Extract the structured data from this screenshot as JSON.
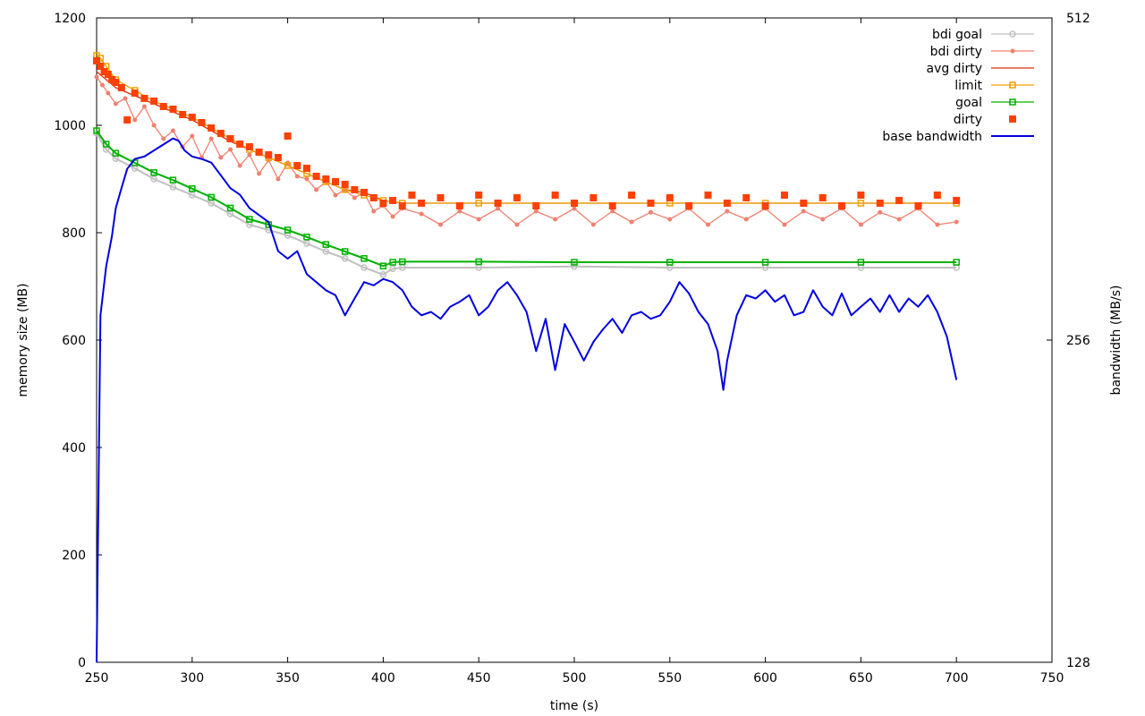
{
  "chart_data": {
    "type": "line",
    "title": "",
    "xlabel": "time (s)",
    "ylabel": "memory size (MB)",
    "y2label": "bandwidth (MB/s)",
    "xlim": [
      250,
      750
    ],
    "ylim": [
      0,
      1200
    ],
    "y2lim": [
      128,
      512
    ],
    "xticks": [
      250,
      300,
      350,
      400,
      450,
      500,
      550,
      600,
      650,
      700,
      750
    ],
    "yticks": [
      0,
      200,
      400,
      600,
      800,
      1000,
      1200
    ],
    "y2ticks": [
      128,
      256,
      512
    ],
    "grid": false,
    "legend_position": "top-right",
    "series": [
      {
        "name": "bdi goal",
        "axis": "y",
        "color": "#c0c0c0",
        "marker": "circle-open",
        "line": true,
        "x": [
          250,
          255,
          260,
          270,
          280,
          290,
          300,
          310,
          320,
          330,
          340,
          350,
          360,
          370,
          380,
          390,
          400,
          405,
          410,
          450,
          500,
          550,
          600,
          650,
          700
        ],
        "y": [
          985,
          955,
          938,
          920,
          900,
          885,
          870,
          855,
          835,
          815,
          805,
          795,
          780,
          765,
          752,
          735,
          722,
          733,
          735,
          735,
          737,
          735,
          735,
          735,
          735
        ]
      },
      {
        "name": "bdi dirty",
        "axis": "y",
        "color": "#f08070",
        "marker": "dot",
        "line": true,
        "x": [
          250,
          253,
          256,
          260,
          265,
          270,
          275,
          280,
          285,
          290,
          295,
          300,
          305,
          310,
          315,
          320,
          325,
          330,
          335,
          340,
          345,
          350,
          355,
          360,
          365,
          370,
          375,
          380,
          385,
          390,
          395,
          400,
          405,
          410,
          420,
          430,
          440,
          450,
          460,
          470,
          480,
          490,
          500,
          510,
          520,
          530,
          540,
          550,
          560,
          570,
          580,
          590,
          600,
          610,
          620,
          630,
          640,
          650,
          660,
          670,
          680,
          690,
          700
        ],
        "y": [
          1090,
          1075,
          1060,
          1040,
          1050,
          1010,
          1035,
          1000,
          975,
          990,
          960,
          980,
          940,
          975,
          940,
          955,
          925,
          945,
          910,
          935,
          900,
          930,
          905,
          900,
          880,
          895,
          870,
          880,
          865,
          875,
          840,
          850,
          830,
          845,
          835,
          815,
          840,
          825,
          845,
          815,
          840,
          825,
          845,
          815,
          840,
          820,
          838,
          825,
          845,
          815,
          840,
          825,
          845,
          815,
          840,
          825,
          845,
          815,
          838,
          825,
          845,
          815,
          820
        ]
      },
      {
        "name": "avg dirty",
        "axis": "y",
        "color": "#e03010",
        "marker": "none",
        "line": true,
        "x": [
          250,
          260,
          270,
          280,
          290,
          300,
          310,
          320,
          330,
          340,
          350,
          360,
          370,
          380,
          390,
          400,
          410,
          420,
          450,
          500,
          550,
          600,
          650,
          700
        ],
        "y": [
          1100,
          1070,
          1055,
          1040,
          1025,
          1010,
          990,
          970,
          955,
          940,
          925,
          910,
          895,
          880,
          875,
          860,
          855,
          855,
          855,
          855,
          855,
          855,
          855,
          855
        ]
      },
      {
        "name": "limit",
        "axis": "y",
        "color": "#f0a000",
        "marker": "square-open",
        "line": true,
        "x": [
          250,
          252,
          255,
          260,
          270,
          280,
          290,
          300,
          310,
          320,
          330,
          340,
          350,
          360,
          370,
          380,
          390,
          400,
          410,
          450,
          500,
          550,
          600,
          650,
          700
        ],
        "y": [
          1130,
          1125,
          1110,
          1085,
          1065,
          1045,
          1030,
          1015,
          995,
          975,
          955,
          940,
          925,
          910,
          895,
          880,
          870,
          860,
          855,
          855,
          855,
          855,
          855,
          855,
          855
        ]
      },
      {
        "name": "goal",
        "axis": "y",
        "color": "#00b000",
        "marker": "square-open",
        "line": true,
        "x": [
          250,
          255,
          260,
          270,
          280,
          290,
          300,
          310,
          320,
          330,
          340,
          350,
          360,
          370,
          380,
          390,
          400,
          405,
          410,
          450,
          500,
          550,
          600,
          650,
          700
        ],
        "y": [
          990,
          965,
          948,
          930,
          912,
          898,
          882,
          866,
          846,
          825,
          815,
          805,
          792,
          778,
          765,
          752,
          738,
          745,
          746,
          746,
          745,
          745,
          745,
          745,
          745
        ]
      },
      {
        "name": "dirty",
        "axis": "y",
        "color": "#ff4000",
        "marker": "square",
        "line": false,
        "x": [
          250,
          252,
          254,
          256,
          258,
          260,
          263,
          266,
          270,
          275,
          280,
          285,
          290,
          295,
          300,
          305,
          310,
          315,
          320,
          325,
          330,
          335,
          340,
          345,
          350,
          355,
          360,
          365,
          370,
          375,
          380,
          385,
          390,
          395,
          400,
          405,
          410,
          415,
          420,
          430,
          440,
          450,
          460,
          470,
          480,
          490,
          500,
          510,
          520,
          530,
          540,
          550,
          560,
          570,
          580,
          590,
          600,
          610,
          620,
          630,
          640,
          650,
          660,
          670,
          680,
          690,
          700
        ],
        "y": [
          1120,
          1110,
          1100,
          1095,
          1085,
          1080,
          1070,
          1010,
          1060,
          1050,
          1045,
          1035,
          1030,
          1020,
          1015,
          1005,
          995,
          985,
          975,
          965,
          960,
          950,
          945,
          940,
          980,
          925,
          920,
          905,
          900,
          895,
          890,
          880,
          875,
          865,
          855,
          860,
          850,
          870,
          855,
          865,
          850,
          870,
          855,
          865,
          850,
          870,
          855,
          865,
          850,
          870,
          855,
          865,
          850,
          870,
          855,
          865,
          850,
          870,
          855,
          865,
          850,
          870,
          855,
          860,
          850,
          870,
          860
        ]
      },
      {
        "name": "base bandwidth",
        "axis": "y2",
        "color": "#0000e0",
        "marker": "none",
        "line": true,
        "x": [
          250,
          252,
          255,
          258,
          260,
          263,
          266,
          270,
          275,
          280,
          285,
          290,
          293,
          296,
          300,
          305,
          310,
          315,
          320,
          325,
          330,
          335,
          340,
          345,
          350,
          355,
          360,
          365,
          370,
          375,
          380,
          385,
          390,
          395,
          400,
          405,
          410,
          415,
          420,
          425,
          430,
          435,
          440,
          445,
          450,
          455,
          460,
          465,
          470,
          475,
          480,
          485,
          490,
          495,
          500,
          505,
          510,
          515,
          520,
          525,
          530,
          535,
          540,
          545,
          550,
          555,
          560,
          565,
          570,
          575,
          578,
          580,
          585,
          590,
          595,
          600,
          605,
          610,
          615,
          620,
          625,
          630,
          635,
          640,
          645,
          650,
          655,
          660,
          665,
          670,
          675,
          680,
          685,
          690,
          695,
          700
        ],
        "y": [
          128,
          270,
          300,
          320,
          340,
          355,
          370,
          378,
          380,
          385,
          390,
          395,
          393,
          385,
          380,
          378,
          375,
          365,
          355,
          350,
          340,
          335,
          330,
          310,
          305,
          310,
          295,
          290,
          285,
          282,
          270,
          280,
          290,
          288,
          292,
          290,
          285,
          275,
          270,
          272,
          268,
          275,
          278,
          282,
          270,
          275,
          285,
          290,
          282,
          272,
          250,
          268,
          240,
          265,
          255,
          245,
          255,
          262,
          268,
          260,
          270,
          272,
          268,
          270,
          278,
          290,
          283,
          272,
          265,
          250,
          230,
          245,
          270,
          282,
          280,
          285,
          278,
          282,
          270,
          272,
          285,
          275,
          270,
          283,
          270,
          275,
          280,
          272,
          282,
          272,
          280,
          275,
          282,
          272,
          258,
          235
        ]
      }
    ]
  }
}
